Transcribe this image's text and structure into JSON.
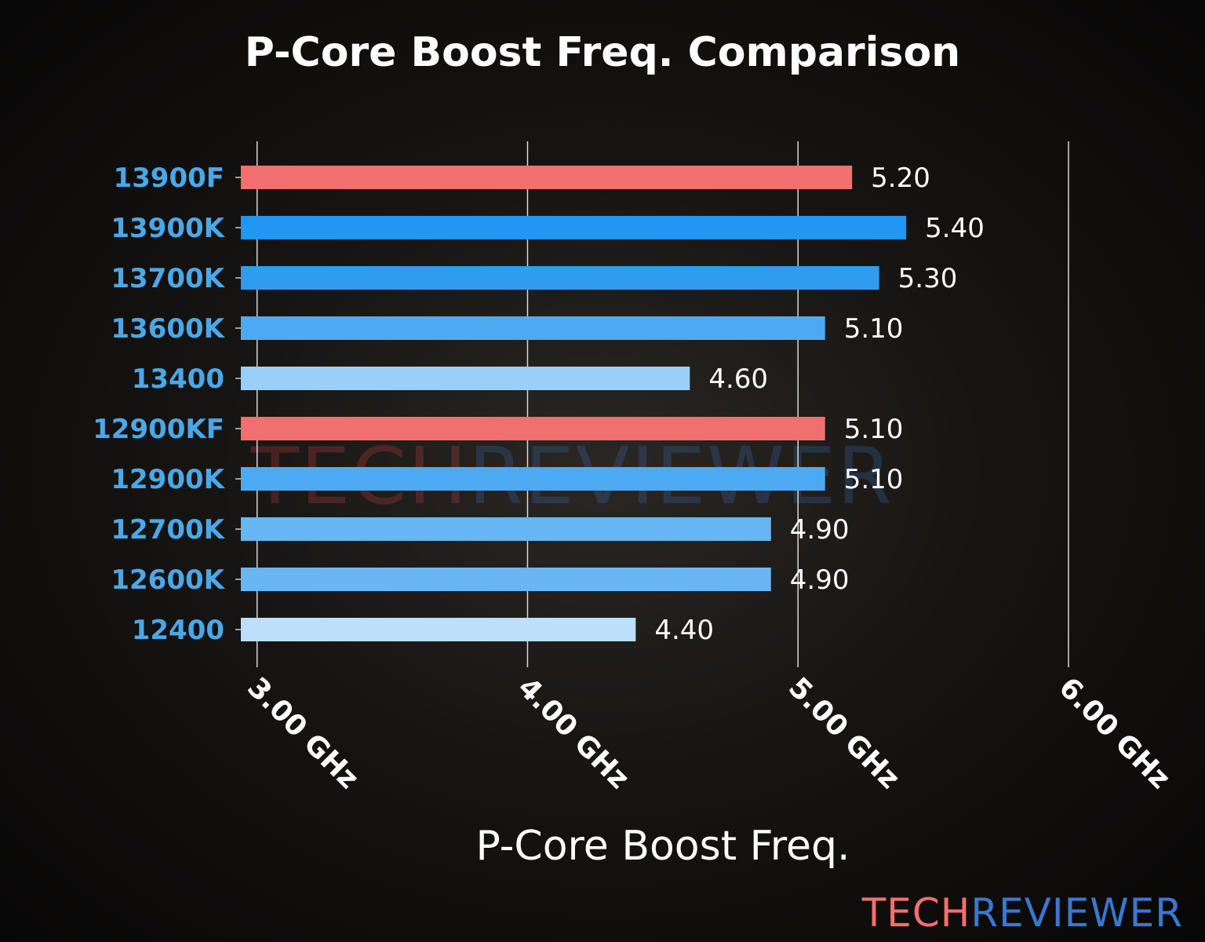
{
  "chart_data": {
    "type": "bar",
    "orientation": "horizontal",
    "title": "P-Core Boost Freq. Comparison",
    "xlabel": "P-Core Boost Freq.",
    "ylabel": "",
    "xlim": [
      2.94,
      6.0
    ],
    "xticks": [
      3,
      4,
      5,
      6
    ],
    "xtick_labels": [
      "3.00 GHz",
      "4.00 GHz",
      "5.00 GHz",
      "6.00 GHz"
    ],
    "grid": "vertical",
    "categories": [
      "13900F",
      "13900K",
      "13700K",
      "13600K",
      "13400",
      "12900KF",
      "12900K",
      "12700K",
      "12600K",
      "12400"
    ],
    "values": [
      5.2,
      5.4,
      5.3,
      5.1,
      4.6,
      5.1,
      5.1,
      4.9,
      4.9,
      4.4
    ],
    "value_labels": [
      "5.20",
      "5.40",
      "5.30",
      "5.10",
      "4.60",
      "5.10",
      "5.10",
      "4.90",
      "4.90",
      "4.40"
    ],
    "colors": [
      "#f07070",
      "#2196f3",
      "#2f9cf0",
      "#4daaf2",
      "#9ccff8",
      "#f07070",
      "#4daaf2",
      "#68b6f4",
      "#68b6f4",
      "#bcdffb"
    ],
    "label_color": "#4aa8e8"
  },
  "logo": {
    "part1": "TECH",
    "part2": "REVIEWER",
    "color1": "#f07070",
    "color2": "#3a78d0"
  }
}
